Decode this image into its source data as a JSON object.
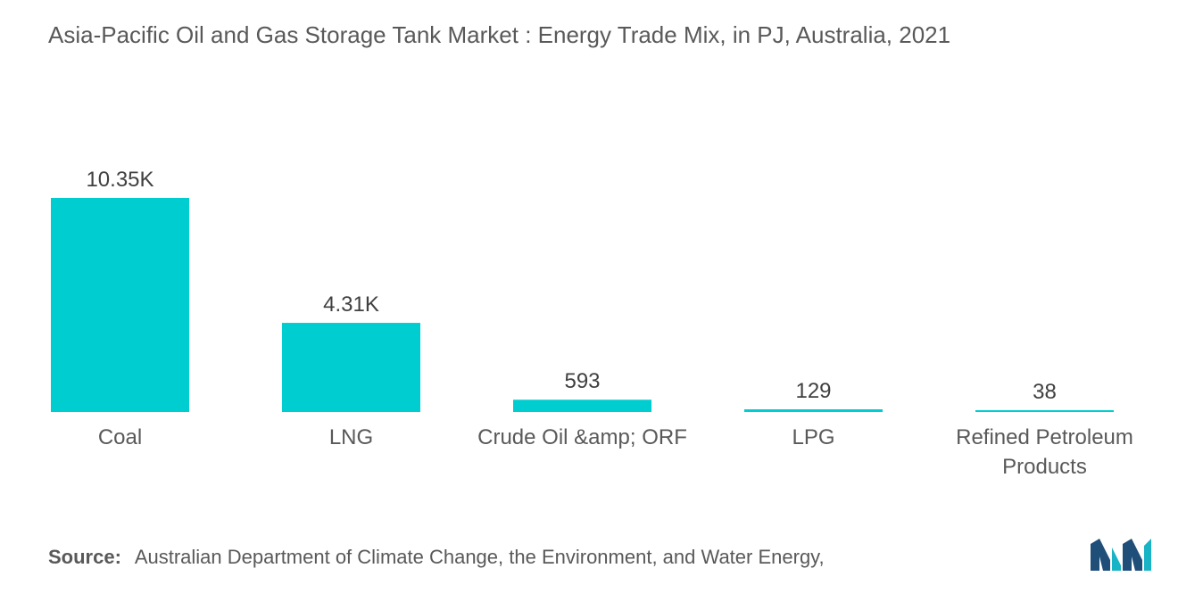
{
  "title": "Asia-Pacific Oil and Gas Storage Tank Market : Energy Trade Mix, in PJ, Australia, 2021",
  "source": {
    "label": "Source:",
    "text": "Australian Department of Climate Change, the Environment, and Water Energy,"
  },
  "colors": {
    "bar": "#00cdd0",
    "logo_dark": "#1f4e79",
    "logo_teal": "#18b3c4"
  },
  "chart_data": {
    "type": "bar",
    "title": "Asia-Pacific Oil and Gas Storage Tank Market : Energy Trade Mix, in PJ, Australia, 2021",
    "xlabel": "",
    "ylabel": "",
    "ylim": [
      0,
      10350
    ],
    "grid": false,
    "categories": [
      [
        "Coal"
      ],
      [
        "LNG"
      ],
      [
        "Crude Oil &amp; ORF"
      ],
      [
        "LPG"
      ],
      [
        "Refined Petroleum",
        "Products"
      ]
    ],
    "values": [
      10350,
      4310,
      593,
      129,
      38
    ],
    "value_labels": [
      "10.35K",
      "4.31K",
      "593",
      "129",
      "38"
    ]
  }
}
